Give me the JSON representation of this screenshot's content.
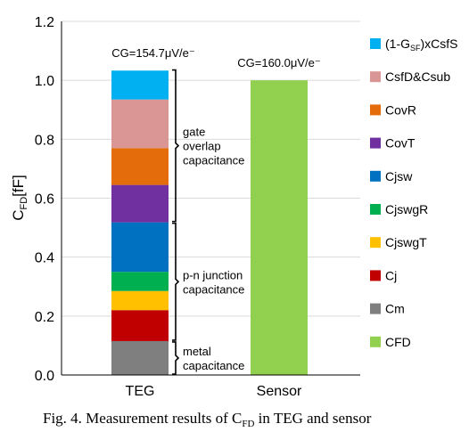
{
  "chart_data": {
    "type": "bar",
    "stacked": true,
    "categories": [
      "TEG",
      "Sensor"
    ],
    "ylabel_main": "C",
    "ylabel_sub": "FD",
    "ylabel_unit": "[fF]",
    "ylim": [
      0.0,
      1.2
    ],
    "yticks": [
      "0.0",
      "0.2",
      "0.4",
      "0.6",
      "0.8",
      "1.0",
      "1.2"
    ],
    "grid": true,
    "legend_position": "right",
    "series": [
      {
        "name": "Cm",
        "color": "#7f7f7f",
        "values": [
          0.115,
          0
        ]
      },
      {
        "name": "Cj",
        "color": "#c00000",
        "values": [
          0.105,
          0
        ]
      },
      {
        "name": "CjswgT",
        "color": "#ffc000",
        "values": [
          0.065,
          0
        ]
      },
      {
        "name": "CjswgR",
        "color": "#00b050",
        "values": [
          0.065,
          0
        ]
      },
      {
        "name": "Cjsw",
        "color": "#0070c0",
        "values": [
          0.168,
          0
        ]
      },
      {
        "name": "CovT",
        "color": "#7030a0",
        "values": [
          0.127,
          0
        ]
      },
      {
        "name": "CovR",
        "color": "#e46c0a",
        "values": [
          0.125,
          0
        ]
      },
      {
        "name": "CsfD&Csub",
        "color": "#d99694",
        "values": [
          0.165,
          0
        ]
      },
      {
        "name": "(1-G_SF)xCsfS",
        "color": "#00b0f0",
        "values": [
          0.098,
          0
        ]
      },
      {
        "name": "CFD",
        "color": "#92d050",
        "values": [
          0,
          1.0
        ]
      }
    ],
    "legend_order": [
      "(1-G_SF)xCsfS",
      "CsfD&Csub",
      "CovR",
      "CovT",
      "Cjsw",
      "CjswgR",
      "CjswgT",
      "Cj",
      "Cm",
      "CFD"
    ],
    "bar_annotations": [
      {
        "category": "TEG",
        "text": "CG=154.7μV/e⁻"
      },
      {
        "category": "Sensor",
        "text": "CG=160.0μV/e⁻"
      }
    ],
    "brackets": [
      {
        "lines": [
          "gate",
          "overlap",
          "capacitance"
        ],
        "range": [
          0.518,
          1.038
        ]
      },
      {
        "lines": [
          "p-n junction",
          "capacitance"
        ],
        "range": [
          0.115,
          0.518
        ]
      },
      {
        "lines": [
          "metal",
          "capacitance"
        ],
        "range": [
          0.0,
          0.115
        ]
      }
    ]
  },
  "caption": {
    "prefix": "Fig. 4. Measurement results of C",
    "sub": "FD",
    "suffix": " in TEG and sensor"
  }
}
